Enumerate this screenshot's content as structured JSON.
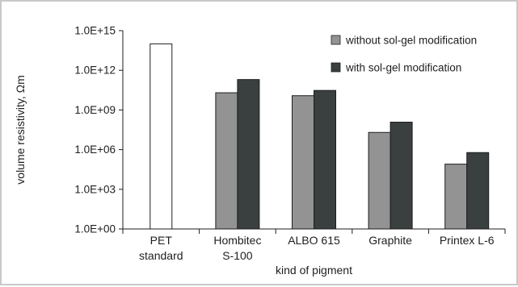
{
  "chart_data": {
    "type": "bar",
    "scale": "log",
    "xlabel": "kind of pigment",
    "ylabel": "volume resistivity, Ωm",
    "categories": [
      [
        "PET",
        "standard"
      ],
      [
        "Hombitec",
        "S-100"
      ],
      [
        "ALBO 615"
      ],
      [
        "Graphite"
      ],
      [
        "Printex L-6"
      ]
    ],
    "ylim": [
      1,
      1000000000000000.0
    ],
    "yticks": [
      {
        "value": 1,
        "label": "1.0E+00"
      },
      {
        "value": 1000.0,
        "label": "1.0E+03"
      },
      {
        "value": 1000000.0,
        "label": "1.0E+06"
      },
      {
        "value": 1000000000.0,
        "label": "1.0E+09"
      },
      {
        "value": 1000000000000.0,
        "label": "1.0E+12"
      },
      {
        "value": 1000000000000000.0,
        "label": "1.0E+15"
      }
    ],
    "reference_bar": {
      "category_index": 0,
      "value": 100000000000000.0,
      "color": "#ffffff"
    },
    "series": [
      {
        "name": "without sol-gel modification",
        "color": "#939393",
        "values": [
          null,
          20000000000.0,
          12000000000.0,
          20000000.0,
          80000.0
        ]
      },
      {
        "name": "with sol-gel modification",
        "color": "#3a3f3f",
        "values": [
          null,
          200000000000.0,
          30000000000.0,
          120000000.0,
          600000.0
        ]
      }
    ],
    "legend_position": "top-right",
    "grid": false
  }
}
